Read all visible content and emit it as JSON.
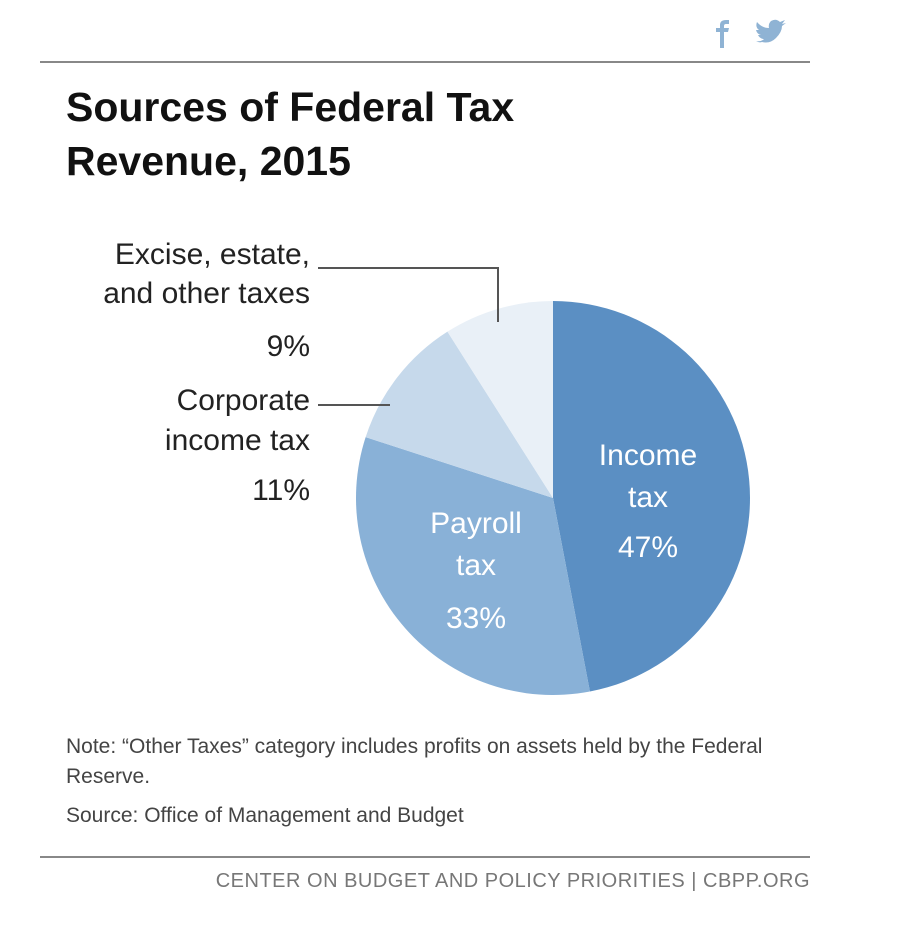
{
  "chart_data": {
    "type": "pie",
    "title": "Sources of Federal Tax Revenue, 2015",
    "categories": [
      [
        "Income",
        "tax"
      ],
      [
        "Payroll",
        "tax"
      ],
      [
        "Corporate",
        "income tax"
      ],
      [
        "Excise, estate,",
        "and other taxes"
      ]
    ],
    "values": [
      47,
      33,
      11,
      9
    ],
    "value_labels": [
      "47%",
      "33%",
      "11%",
      "9%"
    ],
    "colors": [
      "#5b8fc3",
      "#89b1d7",
      "#c6d9eb",
      "#e9f0f7"
    ],
    "note": "Note: “Other Taxes” category includes profits on assets held by the Federal Reserve.",
    "source": "Source: Office of Management and Budget",
    "footer": "CENTER ON BUDGET AND POLICY PRIORITIES | CBPP.ORG"
  }
}
